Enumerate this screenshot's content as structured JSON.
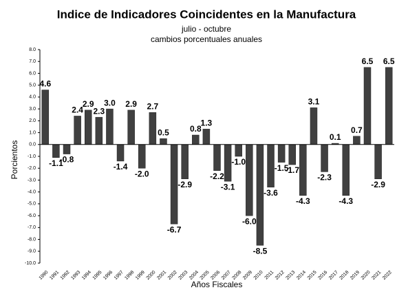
{
  "chart_data": {
    "type": "bar",
    "title": "Indice de Indicadores Coincidentes en la Manufactura",
    "subtitle": [
      "julio - octubre",
      "cambios porcentuales anuales"
    ],
    "x_label": "Años Fiscales",
    "y_label": "Porcientos",
    "categories": [
      "1990",
      "1991",
      "1992",
      "1993",
      "1994",
      "1995",
      "1996",
      "1997",
      "1998",
      "1999",
      "2000",
      "2001",
      "2002",
      "2003",
      "2004",
      "2005",
      "2006",
      "2007",
      "2008",
      "2009",
      "2010",
      "2011",
      "2012",
      "2013",
      "2014",
      "2015",
      "2016",
      "2017",
      "2018",
      "2019",
      "2020",
      "2021",
      "2022"
    ],
    "values": [
      4.6,
      -1.1,
      -0.8,
      2.4,
      2.9,
      2.3,
      3.0,
      -1.4,
      2.9,
      -2.0,
      2.7,
      0.5,
      -6.7,
      -2.9,
      0.8,
      1.3,
      -2.2,
      -3.1,
      -1.0,
      -6.0,
      -8.5,
      -3.6,
      -1.5,
      -1.7,
      -4.3,
      3.1,
      -2.3,
      0.1,
      -4.3,
      0.7,
      6.5,
      -2.9,
      6.5
    ],
    "value_labels": [
      "4.6",
      "-1.1",
      "-0.8",
      "2.4",
      "2.9",
      "2.3",
      "3.0",
      "-1.4",
      "2.9",
      "-2.0",
      "2.7",
      "0.5",
      "-6.7",
      "-2.9",
      "0.8",
      "1.3",
      "-2.2",
      "-3.1",
      "-1.0",
      "-6.0",
      "-8.5",
      "-3.6",
      "-1.5",
      "-1.7",
      "-4.3",
      "3.1",
      "-2.3",
      "0.1",
      "-4.3",
      "0.7",
      "6.5",
      "-2.9",
      "6.5"
    ],
    "color": "#404040",
    "ylim": [
      -10,
      8
    ],
    "yticks": [
      {
        "value": 8,
        "label": "8.0"
      },
      {
        "value": 7,
        "label": "7.0"
      },
      {
        "value": 6,
        "label": "6.0"
      },
      {
        "value": 5,
        "label": "5.0"
      },
      {
        "value": 4,
        "label": "4.0"
      },
      {
        "value": 3,
        "label": "3.0"
      },
      {
        "value": 2,
        "label": "2.0"
      },
      {
        "value": 1,
        "label": "1.0"
      },
      {
        "value": 0,
        "label": "0.0"
      },
      {
        "value": -1,
        "label": "-1.0"
      },
      {
        "value": -2,
        "label": "-2.0"
      },
      {
        "value": -3,
        "label": "-3.0"
      },
      {
        "value": -4,
        "label": "-4.0"
      },
      {
        "value": -5,
        "label": "-5.0"
      },
      {
        "value": -6,
        "label": "-6.0"
      },
      {
        "value": -7,
        "label": "-7.0"
      },
      {
        "value": -8,
        "label": "-8.0"
      },
      {
        "value": -9,
        "label": "-9.0"
      },
      {
        "value": -10,
        "label": "-10.0"
      }
    ],
    "grid": false
  }
}
